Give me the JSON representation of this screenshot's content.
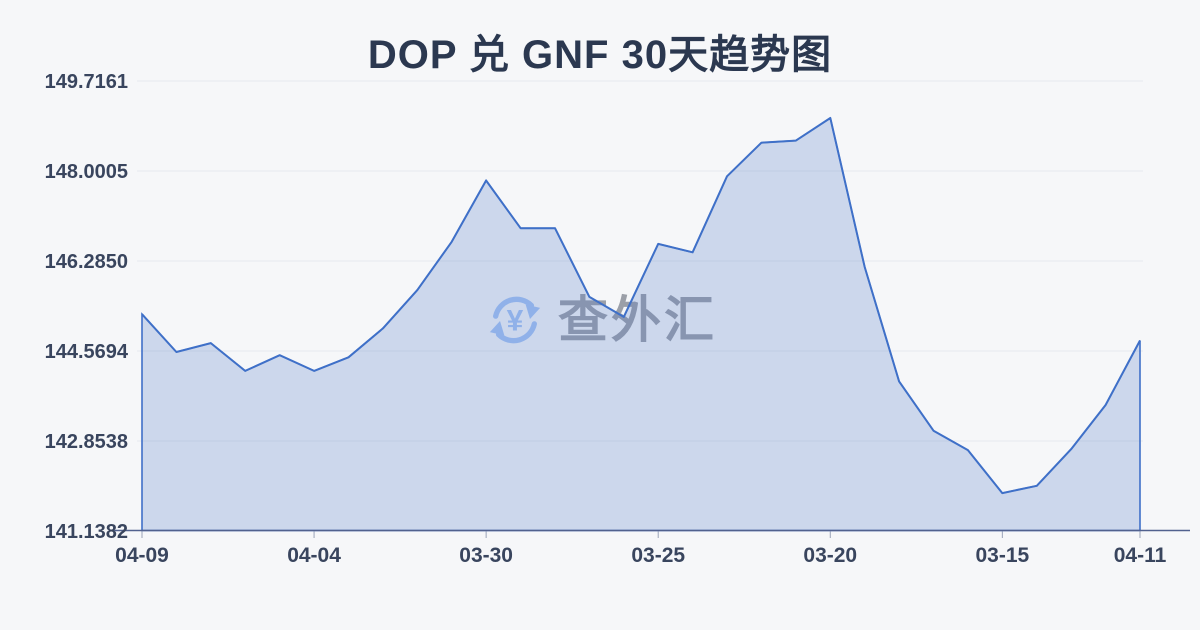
{
  "chart_data": {
    "type": "area",
    "title": "DOP 兑 GNF 30天趋势图",
    "xlabel": "",
    "ylabel": "",
    "ylim": [
      141.1382,
      149.7161
    ],
    "grid": true,
    "legend": "none",
    "y_ticks": [
      {
        "label": "149.7161",
        "value": 149.7161
      },
      {
        "label": "148.0005",
        "value": 148.0005
      },
      {
        "label": "146.2850",
        "value": 146.285
      },
      {
        "label": "144.5694",
        "value": 144.5694
      },
      {
        "label": "142.8538",
        "value": 142.8538
      },
      {
        "label": "141.1382",
        "value": 141.1382
      }
    ],
    "x_ticks": [
      {
        "label": "04-09",
        "index": 0
      },
      {
        "label": "04-04",
        "index": 5
      },
      {
        "label": "03-30",
        "index": 10
      },
      {
        "label": "03-25",
        "index": 15
      },
      {
        "label": "03-20",
        "index": 20
      },
      {
        "label": "03-15",
        "index": 25
      },
      {
        "label": "04-11",
        "index": 29
      }
    ],
    "values": [
      145.27,
      144.55,
      144.72,
      144.19,
      144.49,
      144.19,
      144.45,
      145.0,
      145.73,
      146.65,
      147.82,
      146.91,
      146.91,
      145.6,
      145.22,
      146.61,
      146.45,
      147.9,
      148.54,
      148.58,
      149.01,
      146.17,
      143.99,
      143.05,
      142.68,
      141.86,
      142.0,
      142.7,
      143.54,
      144.77
    ],
    "watermark_text": "查外汇",
    "watermark_symbol": "¥",
    "colors": {
      "background": "#f6f7f9",
      "title_text": "#2b3850",
      "line": "#3f70c8",
      "area_fill": "rgba(79,121,199,0.25)",
      "gridline": "#e7e9ee",
      "axis_line": "#51618e",
      "tick_mark": "#9aa3b8",
      "axis_label": "#39455e",
      "watermark_text": "#9b9fa8",
      "watermark_icon": "#a6c5f4"
    }
  }
}
